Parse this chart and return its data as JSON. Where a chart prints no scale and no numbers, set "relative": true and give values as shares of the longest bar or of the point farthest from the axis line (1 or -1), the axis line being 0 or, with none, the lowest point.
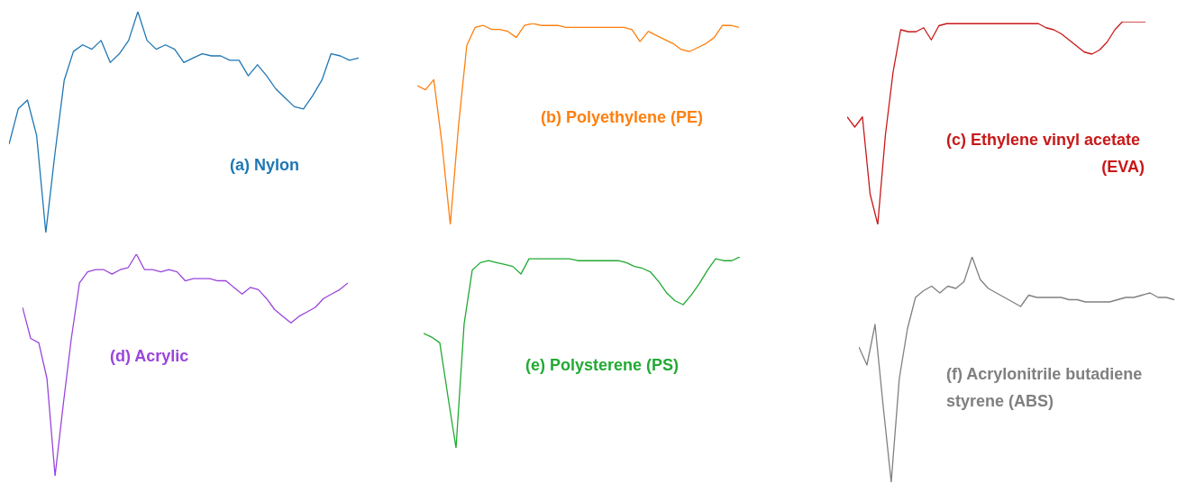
{
  "chart_data": [
    {
      "type": "line",
      "relative": true,
      "marker": "none",
      "categories": [
        null,
        null,
        null,
        null,
        null,
        null,
        null,
        null,
        null,
        null,
        null,
        null,
        null,
        null,
        null,
        null,
        null,
        null,
        null,
        null,
        null,
        null,
        null,
        null,
        null,
        null,
        null,
        null,
        null,
        null,
        null,
        null,
        null,
        null,
        null,
        null,
        null,
        null,
        null
      ],
      "series": [
        {
          "name": "(a) Nylon",
          "color": "#1f77b4",
          "values": [
            0.4,
            0.56,
            0.6,
            0.44,
            0,
            0.36,
            0.69,
            0.82,
            0.85,
            0.83,
            0.87,
            0.77,
            0.81,
            0.87,
            1,
            0.87,
            0.83,
            0.85,
            0.83,
            0.77,
            0.79,
            0.81,
            0.8,
            0.8,
            0.78,
            0.78,
            0.71,
            0.76,
            0.71,
            0.65,
            0.61,
            0.57,
            0.56,
            0.62,
            0.69,
            0.81,
            0.8,
            0.78,
            0.79
          ]
        }
      ]
    },
    {
      "type": "line",
      "relative": true,
      "marker": "none",
      "categories": [
        null,
        null,
        null,
        null,
        null,
        null,
        null,
        null,
        null,
        null,
        null,
        null,
        null,
        null,
        null,
        null,
        null,
        null,
        null,
        null,
        null,
        null,
        null,
        null,
        null,
        null,
        null,
        null,
        null,
        null,
        null,
        null,
        null,
        null,
        null,
        null,
        null,
        null,
        null,
        null
      ],
      "series": [
        {
          "name": "(b) Polyethylene (PE)",
          "color": "#ff7f0e",
          "values": [
            0.69,
            0.67,
            0.72,
            0.4,
            0,
            0.49,
            0.89,
            0.98,
            0.99,
            0.97,
            0.97,
            0.96,
            0.93,
            0.99,
            1,
            0.99,
            0.99,
            0.99,
            0.98,
            0.98,
            0.98,
            0.98,
            0.98,
            0.98,
            0.98,
            0.98,
            0.97,
            0.91,
            0.96,
            0.94,
            0.92,
            0.9,
            0.87,
            0.86,
            0.88,
            0.9,
            0.93,
            0.99,
            0.99,
            0.98
          ]
        }
      ]
    },
    {
      "type": "line",
      "relative": true,
      "marker": "none",
      "categories": [
        null,
        null,
        null,
        null,
        null,
        null,
        null,
        null,
        null,
        null,
        null,
        null,
        null,
        null,
        null,
        null,
        null,
        null,
        null,
        null,
        null,
        null,
        null,
        null,
        null,
        null,
        null,
        null,
        null,
        null,
        null,
        null,
        null,
        null,
        null,
        null,
        null,
        null,
        null,
        null
      ],
      "series": [
        {
          "name": "(c) Ethylene vinyl acetate (EVA)",
          "color": "#c81818",
          "values": [
            0.53,
            0.48,
            0.53,
            0.15,
            0,
            0.44,
            0.75,
            0.96,
            0.95,
            0.95,
            0.97,
            0.91,
            0.98,
            0.99,
            0.99,
            0.99,
            0.99,
            0.99,
            0.99,
            0.99,
            0.99,
            0.99,
            0.99,
            0.99,
            0.99,
            0.99,
            0.97,
            0.96,
            0.94,
            0.91,
            0.88,
            0.85,
            0.84,
            0.86,
            0.9,
            0.96,
            1,
            1,
            1,
            1
          ]
        }
      ]
    },
    {
      "type": "line",
      "relative": true,
      "marker": "none",
      "categories": [
        null,
        null,
        null,
        null,
        null,
        null,
        null,
        null,
        null,
        null,
        null,
        null,
        null,
        null,
        null,
        null,
        null,
        null,
        null,
        null,
        null,
        null,
        null,
        null,
        null,
        null,
        null,
        null,
        null,
        null,
        null,
        null,
        null,
        null,
        null,
        null,
        null,
        null,
        null,
        null,
        null
      ],
      "series": [
        {
          "name": "(d) Acrylic",
          "color": "#9a45dc",
          "values": [
            0.76,
            0.62,
            0.6,
            0.44,
            0,
            0.32,
            0.62,
            0.87,
            0.92,
            0.93,
            0.93,
            0.91,
            0.93,
            0.94,
            1,
            0.93,
            0.93,
            0.92,
            0.93,
            0.92,
            0.88,
            0.89,
            0.89,
            0.89,
            0.88,
            0.88,
            0.85,
            0.82,
            0.85,
            0.84,
            0.8,
            0.75,
            0.72,
            0.69,
            0.72,
            0.74,
            0.76,
            0.8,
            0.82,
            0.84,
            0.87
          ]
        }
      ]
    },
    {
      "type": "line",
      "relative": true,
      "marker": "none",
      "categories": [
        null,
        null,
        null,
        null,
        null,
        null,
        null,
        null,
        null,
        null,
        null,
        null,
        null,
        null,
        null,
        null,
        null,
        null,
        null,
        null,
        null,
        null,
        null,
        null,
        null,
        null,
        null,
        null,
        null,
        null,
        null,
        null,
        null,
        null,
        null,
        null,
        null,
        null,
        null,
        null
      ],
      "series": [
        {
          "name": "(e) Polysterene (PS)",
          "color": "#22aa33",
          "values": [
            0.6,
            0.58,
            0.55,
            0.27,
            0,
            0.65,
            0.93,
            0.97,
            0.98,
            0.97,
            0.96,
            0.95,
            0.91,
            0.99,
            0.99,
            0.99,
            0.99,
            0.99,
            0.99,
            0.98,
            0.98,
            0.98,
            0.98,
            0.98,
            0.98,
            0.97,
            0.95,
            0.94,
            0.92,
            0.87,
            0.81,
            0.77,
            0.75,
            0.8,
            0.86,
            0.93,
            0.99,
            0.98,
            0.98,
            1
          ]
        }
      ]
    },
    {
      "type": "line",
      "relative": true,
      "marker": "none",
      "categories": [
        null,
        null,
        null,
        null,
        null,
        null,
        null,
        null,
        null,
        null,
        null,
        null,
        null,
        null,
        null,
        null,
        null,
        null,
        null,
        null,
        null,
        null,
        null,
        null,
        null,
        null,
        null,
        null,
        null,
        null,
        null,
        null,
        null,
        null,
        null,
        null,
        null,
        null,
        null,
        null
      ],
      "series": [
        {
          "name": "(f) Acrylonitrile butadiene styrene (ABS)",
          "color": "#808080",
          "values": [
            0.6,
            0.52,
            0.7,
            0.34,
            0,
            0.46,
            0.68,
            0.82,
            0.85,
            0.87,
            0.84,
            0.87,
            0.86,
            0.89,
            1,
            0.9,
            0.86,
            0.84,
            0.82,
            0.8,
            0.78,
            0.83,
            0.82,
            0.82,
            0.82,
            0.82,
            0.81,
            0.81,
            0.8,
            0.8,
            0.8,
            0.8,
            0.81,
            0.82,
            0.82,
            0.83,
            0.84,
            0.82,
            0.82,
            0.81
          ]
        }
      ]
    }
  ]
}
